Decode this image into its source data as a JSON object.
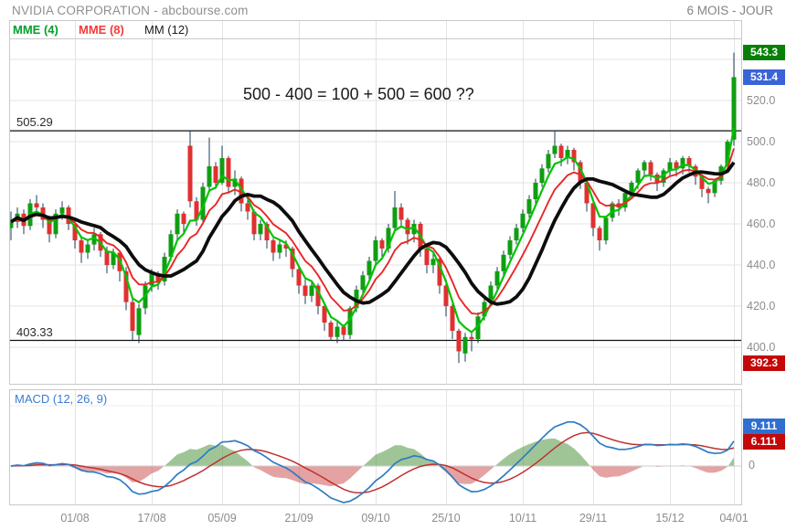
{
  "header": {
    "title": "NVIDIA CORPORATION - abcbourse.com",
    "period": "6 MOIS - JOUR"
  },
  "legend": {
    "items": [
      {
        "label": "MME (4)",
        "color": "#00a12b"
      },
      {
        "label": "MME (8)",
        "color": "#f23a3a"
      },
      {
        "label": "MM (12)",
        "color": "#1c1c1c"
      }
    ]
  },
  "annotation": "500 - 400 = 100 + 500 = 600 ??",
  "price_axis": {
    "ticks": [
      "520.0",
      "500.0",
      "480.0",
      "460.0",
      "440.0",
      "420.0",
      "400.0"
    ],
    "badges": [
      {
        "label": "543.3",
        "color": "#088008"
      },
      {
        "label": "531.4",
        "color": "#3a63d8"
      },
      {
        "label": "392.3",
        "color": "#c40808"
      }
    ]
  },
  "macd_panel": {
    "label": "MACD (12, 26, 9)",
    "badges": [
      {
        "label": "9.111",
        "color": "#2f6fd0"
      },
      {
        "label": "6.111",
        "color": "#c40808"
      }
    ],
    "zero_label": "0"
  },
  "chart_data": {
    "type": "candlestick+macd",
    "title": "NVIDIA CORPORATION",
    "period": "6 MOIS - JOUR",
    "ylim": [
      382,
      550
    ],
    "yticks": [
      400,
      420,
      440,
      460,
      480,
      500,
      520,
      540
    ],
    "hlines": [
      {
        "label": "505.29",
        "price": 505.29
      },
      {
        "label": "403.33",
        "price": 403.33
      }
    ],
    "last_close": 531.4,
    "period_high": 543.3,
    "period_low": 392.3,
    "overlays": [
      {
        "name": "MME (4)",
        "kind": "ema",
        "period": 4,
        "color": "#00c400"
      },
      {
        "name": "MME (8)",
        "kind": "ema",
        "period": 8,
        "color": "#e82727"
      },
      {
        "name": "MM (12)",
        "kind": "sma",
        "period": 12,
        "color": "#0d0d0d"
      }
    ],
    "macd": {
      "params": [
        12,
        26,
        9
      ],
      "last_macd": 9.111,
      "last_signal": 6.111,
      "colors": {
        "macd": "#2e7bc4",
        "signal": "#c03030",
        "hist_pos": "rgba(80,150,66,0.55)",
        "hist_neg": "rgba(205,85,85,0.55)"
      }
    },
    "date_ticks": [
      {
        "label": "01/08",
        "i": 10
      },
      {
        "label": "17/08",
        "i": 22
      },
      {
        "label": "05/09",
        "i": 33
      },
      {
        "label": "21/09",
        "i": 45
      },
      {
        "label": "09/10",
        "i": 57
      },
      {
        "label": "25/10",
        "i": 68
      },
      {
        "label": "10/11",
        "i": 80
      },
      {
        "label": "29/11",
        "i": 91
      },
      {
        "label": "15/12",
        "i": 103
      },
      {
        "label": "04/01",
        "i": 113
      }
    ],
    "candles": [
      [
        458,
        466,
        452,
        461
      ],
      [
        461,
        468,
        458,
        465
      ],
      [
        465,
        467,
        455,
        459
      ],
      [
        459,
        472,
        457,
        470
      ],
      [
        470,
        474,
        465,
        468
      ],
      [
        468,
        470,
        458,
        462
      ],
      [
        462,
        464,
        451,
        455
      ],
      [
        455,
        467,
        453,
        465
      ],
      [
        465,
        471,
        462,
        468
      ],
      [
        468,
        469,
        457,
        460
      ],
      [
        460,
        462,
        448,
        452
      ],
      [
        452,
        454,
        441,
        446
      ],
      [
        446,
        452,
        443,
        450
      ],
      [
        450,
        458,
        447,
        455
      ],
      [
        455,
        456,
        444,
        447
      ],
      [
        447,
        449,
        436,
        440
      ],
      [
        440,
        448,
        438,
        446
      ],
      [
        446,
        447,
        432,
        437
      ],
      [
        437,
        439,
        418,
        422
      ],
      [
        422,
        424,
        403,
        408
      ],
      [
        406,
        421,
        402,
        419
      ],
      [
        419,
        432,
        416,
        430
      ],
      [
        430,
        438,
        427,
        436
      ],
      [
        436,
        437,
        428,
        432
      ],
      [
        432,
        446,
        430,
        444
      ],
      [
        444,
        457,
        442,
        455
      ],
      [
        455,
        467,
        452,
        465
      ],
      [
        465,
        466,
        456,
        460
      ],
      [
        498,
        505.3,
        468,
        471
      ],
      [
        471,
        473,
        459,
        462
      ],
      [
        462,
        480,
        461,
        478
      ],
      [
        478,
        502,
        476,
        488
      ],
      [
        488,
        490,
        477,
        480
      ],
      [
        480,
        498,
        479,
        492
      ],
      [
        492,
        493,
        475,
        478
      ],
      [
        478,
        486,
        474,
        482
      ],
      [
        482,
        483,
        466,
        470
      ],
      [
        470,
        474,
        462,
        466
      ],
      [
        466,
        467,
        452,
        455
      ],
      [
        455,
        462,
        452,
        460
      ],
      [
        460,
        461,
        448,
        452
      ],
      [
        452,
        453,
        442,
        446
      ],
      [
        446,
        452,
        443,
        450
      ],
      [
        450,
        452,
        444,
        448
      ],
      [
        448,
        449,
        434,
        438
      ],
      [
        438,
        440,
        426,
        430
      ],
      [
        430,
        433,
        421,
        425
      ],
      [
        425,
        432,
        422,
        430
      ],
      [
        430,
        431,
        416,
        420
      ],
      [
        420,
        421,
        408,
        412
      ],
      [
        412,
        413,
        403.3,
        405
      ],
      [
        405,
        413,
        402,
        410
      ],
      [
        410,
        411,
        403,
        406
      ],
      [
        406,
        420,
        404,
        419
      ],
      [
        419,
        430,
        417,
        428
      ],
      [
        428,
        437,
        425,
        435
      ],
      [
        435,
        444,
        432,
        442
      ],
      [
        442,
        454,
        440,
        452
      ],
      [
        452,
        453,
        444,
        448
      ],
      [
        448,
        460,
        446,
        458
      ],
      [
        458,
        476,
        456,
        468
      ],
      [
        468,
        470,
        458,
        462
      ],
      [
        462,
        463,
        450,
        455
      ],
      [
        455,
        462,
        451,
        460
      ],
      [
        460,
        461,
        444,
        448
      ],
      [
        448,
        450,
        436,
        440
      ],
      [
        440,
        446,
        436,
        443
      ],
      [
        443,
        444,
        426,
        430
      ],
      [
        430,
        431,
        415,
        420
      ],
      [
        420,
        421,
        404,
        408
      ],
      [
        408,
        409,
        392.3,
        398
      ],
      [
        397,
        407,
        393,
        405
      ],
      [
        405,
        408,
        398,
        404
      ],
      [
        404,
        417,
        402,
        415
      ],
      [
        415,
        424,
        413,
        422
      ],
      [
        422,
        432,
        420,
        430
      ],
      [
        430,
        439,
        428,
        437
      ],
      [
        437,
        447,
        435,
        445
      ],
      [
        445,
        454,
        443,
        452
      ],
      [
        452,
        460,
        450,
        458
      ],
      [
        458,
        467,
        456,
        465
      ],
      [
        465,
        474,
        463,
        472
      ],
      [
        472,
        482,
        470,
        480
      ],
      [
        480,
        489,
        478,
        487
      ],
      [
        487,
        496,
        485,
        494
      ],
      [
        494,
        505,
        492,
        498
      ],
      [
        498,
        499,
        488,
        492
      ],
      [
        492,
        498,
        489,
        496
      ],
      [
        496,
        497,
        486,
        490
      ],
      [
        490,
        491,
        477,
        480
      ],
      [
        480,
        481,
        466,
        470
      ],
      [
        470,
        471,
        454,
        458
      ],
      [
        458,
        459,
        447,
        452
      ],
      [
        452,
        464,
        450,
        463
      ],
      [
        463,
        471,
        461,
        470
      ],
      [
        470,
        472,
        464,
        468
      ],
      [
        468,
        476,
        466,
        475
      ],
      [
        475,
        481,
        472,
        480
      ],
      [
        480,
        487,
        477,
        486
      ],
      [
        486,
        491,
        483,
        490
      ],
      [
        490,
        491,
        481,
        484
      ],
      [
        484,
        485,
        476,
        480
      ],
      [
        480,
        487,
        478,
        486
      ],
      [
        486,
        492,
        483,
        490
      ],
      [
        490,
        491,
        483,
        487
      ],
      [
        487,
        493,
        484,
        492
      ],
      [
        492,
        493,
        485,
        488
      ],
      [
        488,
        489,
        479,
        483
      ],
      [
        483,
        484,
        473,
        477
      ],
      [
        477,
        478,
        470,
        475
      ],
      [
        475,
        482,
        473,
        481
      ],
      [
        481,
        489,
        479,
        488
      ],
      [
        488,
        501,
        486,
        500
      ],
      [
        501,
        543.3,
        498,
        531.4
      ]
    ],
    "candle_colors": {
      "up": "#0f9e12",
      "down": "#e03030",
      "wick": "#1c3c55"
    }
  }
}
